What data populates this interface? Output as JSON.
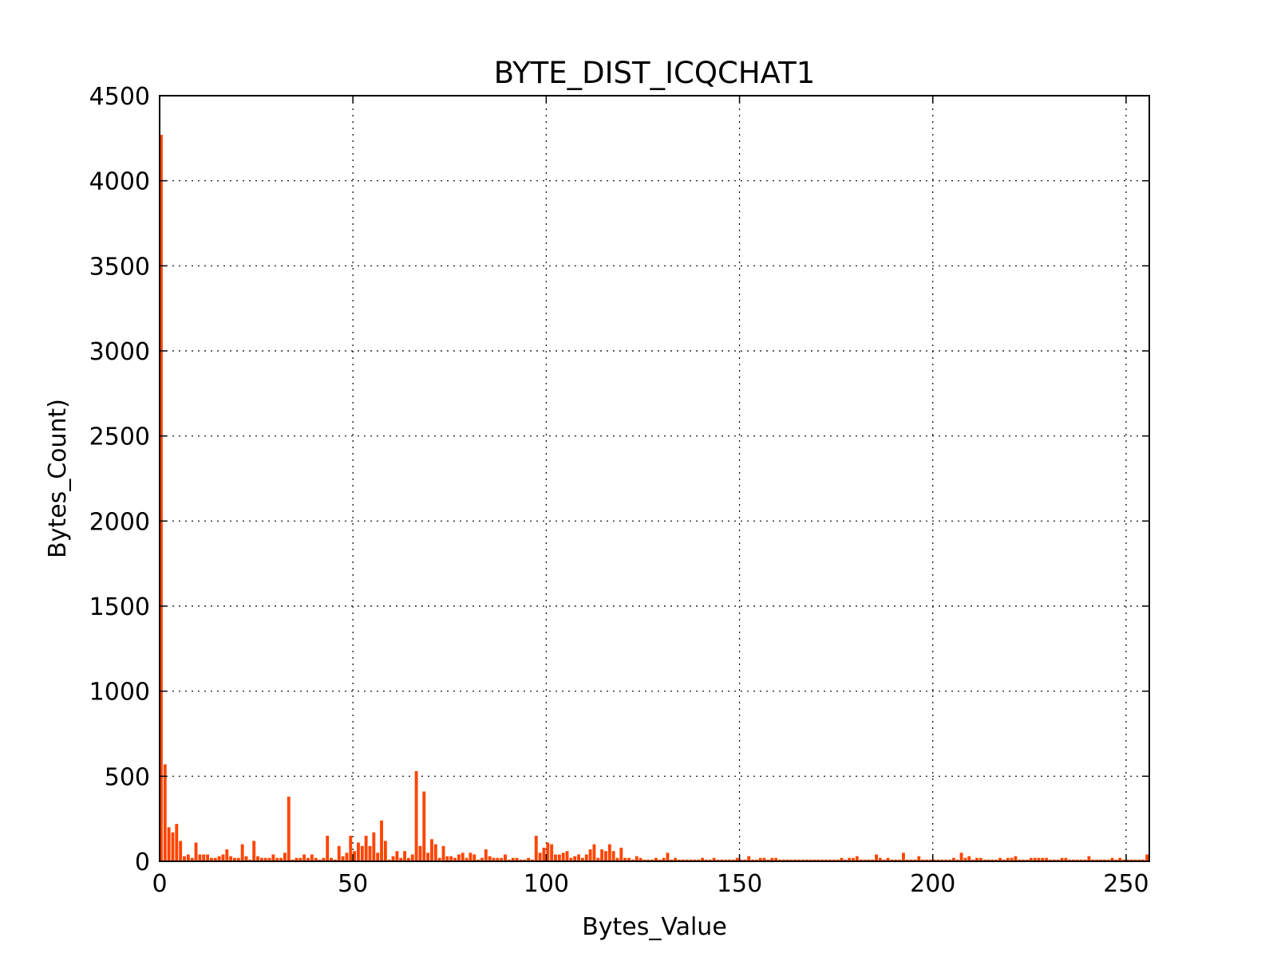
{
  "chart_data": {
    "type": "bar",
    "title": "BYTE_DIST_ICQCHAT1",
    "xlabel": "Bytes_Value",
    "ylabel": "Bytes_Count)",
    "color": "#ff4500",
    "grid": true,
    "xlim": [
      0,
      256
    ],
    "ylim": [
      0,
      4500
    ],
    "xticks": [
      0,
      50,
      100,
      150,
      200,
      250
    ],
    "yticks": [
      0,
      500,
      1000,
      1500,
      2000,
      2500,
      3000,
      3500,
      4000,
      4500
    ],
    "x": [
      0,
      1,
      2,
      3,
      4,
      5,
      6,
      7,
      8,
      9,
      10,
      11,
      12,
      13,
      14,
      15,
      16,
      17,
      18,
      19,
      20,
      21,
      22,
      23,
      24,
      25,
      26,
      27,
      28,
      29,
      30,
      31,
      32,
      33,
      34,
      35,
      36,
      37,
      38,
      39,
      40,
      41,
      42,
      43,
      44,
      45,
      46,
      47,
      48,
      49,
      50,
      51,
      52,
      53,
      54,
      55,
      56,
      57,
      58,
      59,
      60,
      61,
      62,
      63,
      64,
      65,
      66,
      67,
      68,
      69,
      70,
      71,
      72,
      73,
      74,
      75,
      76,
      77,
      78,
      79,
      80,
      81,
      82,
      83,
      84,
      85,
      86,
      87,
      88,
      89,
      90,
      91,
      92,
      93,
      94,
      95,
      96,
      97,
      98,
      99,
      100,
      101,
      102,
      103,
      104,
      105,
      106,
      107,
      108,
      109,
      110,
      111,
      112,
      113,
      114,
      115,
      116,
      117,
      118,
      119,
      120,
      121,
      122,
      123,
      124,
      125,
      126,
      127,
      128,
      129,
      130,
      131,
      132,
      133,
      134,
      135,
      136,
      137,
      138,
      139,
      140,
      141,
      142,
      143,
      144,
      145,
      146,
      147,
      148,
      149,
      150,
      151,
      152,
      153,
      154,
      155,
      156,
      157,
      158,
      159,
      160,
      161,
      162,
      163,
      164,
      165,
      166,
      167,
      168,
      169,
      170,
      171,
      172,
      173,
      174,
      175,
      176,
      177,
      178,
      179,
      180,
      181,
      182,
      183,
      184,
      185,
      186,
      187,
      188,
      189,
      190,
      191,
      192,
      193,
      194,
      195,
      196,
      197,
      198,
      199,
      200,
      201,
      202,
      203,
      204,
      205,
      206,
      207,
      208,
      209,
      210,
      211,
      212,
      213,
      214,
      215,
      216,
      217,
      218,
      219,
      220,
      221,
      222,
      223,
      224,
      225,
      226,
      227,
      228,
      229,
      230,
      231,
      232,
      233,
      234,
      235,
      236,
      237,
      238,
      239,
      240,
      241,
      242,
      243,
      244,
      245,
      246,
      247,
      248,
      249,
      250,
      251,
      252,
      253,
      254,
      255
    ],
    "values": [
      4270,
      570,
      200,
      170,
      220,
      120,
      30,
      40,
      20,
      110,
      40,
      40,
      40,
      20,
      20,
      30,
      40,
      70,
      30,
      20,
      20,
      100,
      30,
      10,
      120,
      30,
      20,
      20,
      20,
      40,
      20,
      20,
      50,
      380,
      10,
      20,
      20,
      40,
      20,
      40,
      20,
      10,
      20,
      150,
      20,
      10,
      90,
      30,
      50,
      150,
      60,
      110,
      90,
      150,
      90,
      170,
      50,
      240,
      120,
      10,
      30,
      60,
      20,
      60,
      20,
      40,
      530,
      90,
      410,
      50,
      130,
      100,
      20,
      90,
      30,
      30,
      20,
      40,
      50,
      20,
      50,
      40,
      10,
      20,
      70,
      30,
      20,
      20,
      20,
      40,
      10,
      20,
      20,
      10,
      10,
      20,
      10,
      150,
      50,
      80,
      110,
      100,
      40,
      40,
      50,
      60,
      20,
      30,
      40,
      20,
      40,
      70,
      100,
      20,
      70,
      60,
      100,
      60,
      20,
      80,
      20,
      20,
      10,
      30,
      20,
      10,
      10,
      10,
      20,
      10,
      20,
      50,
      10,
      20,
      10,
      10,
      10,
      10,
      10,
      10,
      20,
      10,
      10,
      20,
      10,
      10,
      10,
      10,
      10,
      20,
      10,
      10,
      30,
      10,
      10,
      20,
      20,
      10,
      20,
      20,
      10,
      10,
      10,
      10,
      10,
      10,
      10,
      10,
      10,
      10,
      10,
      10,
      10,
      10,
      10,
      10,
      20,
      10,
      20,
      20,
      30,
      10,
      10,
      10,
      10,
      40,
      20,
      10,
      20,
      10,
      10,
      10,
      50,
      10,
      10,
      10,
      30,
      10,
      10,
      10,
      10,
      10,
      10,
      10,
      10,
      20,
      10,
      50,
      20,
      30,
      10,
      20,
      20,
      10,
      10,
      10,
      10,
      20,
      10,
      20,
      20,
      30,
      10,
      10,
      10,
      20,
      20,
      20,
      20,
      20,
      10,
      10,
      10,
      20,
      20,
      10,
      10,
      10,
      10,
      10,
      30,
      10,
      10,
      10,
      10,
      10,
      20,
      10,
      20,
      10,
      10,
      10,
      10,
      10,
      10,
      40
    ]
  }
}
